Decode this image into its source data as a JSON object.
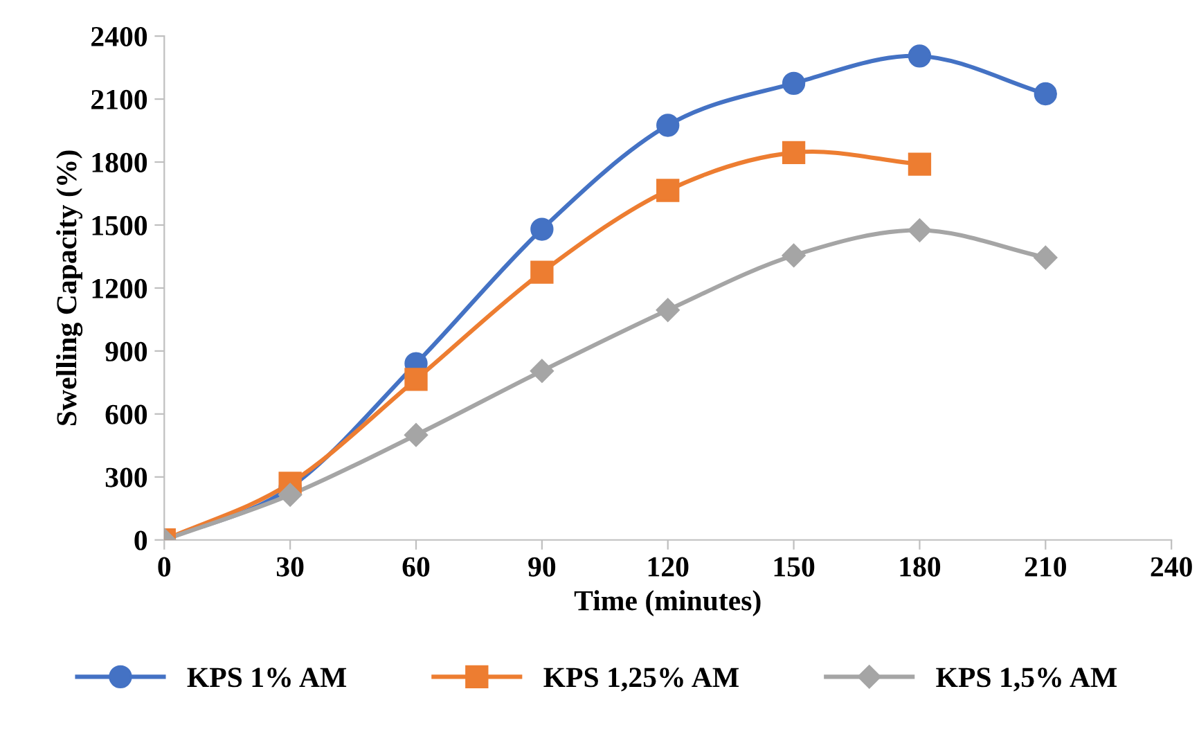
{
  "chart_data": {
    "type": "line",
    "xlabel": "Time (minutes)",
    "ylabel": "Swelling Capacity (%)",
    "xlim": [
      0,
      240
    ],
    "xticks": [
      0,
      30,
      60,
      90,
      120,
      150,
      180,
      210,
      240
    ],
    "ylim": [
      0,
      2400
    ],
    "yticks": [
      0,
      300,
      600,
      900,
      1200,
      1500,
      1800,
      2100,
      2400
    ],
    "grid": false,
    "legend": "bottom",
    "line_style": "solid",
    "series": [
      {
        "name": "KPS 1% AM",
        "color": "#4472c4",
        "marker": "circle",
        "x": [
          0,
          30,
          60,
          90,
          120,
          150,
          180,
          210
        ],
        "values": [
          0,
          250,
          840,
          1480,
          1975,
          2175,
          2305,
          2125
        ]
      },
      {
        "name": "KPS 1,25% AM",
        "color": "#ed7d31",
        "marker": "square",
        "x": [
          0,
          30,
          60,
          90,
          120,
          150,
          180
        ],
        "values": [
          0,
          270,
          765,
          1275,
          1665,
          1845,
          1790
        ]
      },
      {
        "name": "KPS 1,5% AM",
        "color": "#a5a5a5",
        "marker": "diamond",
        "x": [
          0,
          30,
          60,
          90,
          120,
          150,
          180,
          210
        ],
        "values": [
          0,
          215,
          500,
          805,
          1095,
          1355,
          1475,
          1345
        ]
      }
    ]
  }
}
